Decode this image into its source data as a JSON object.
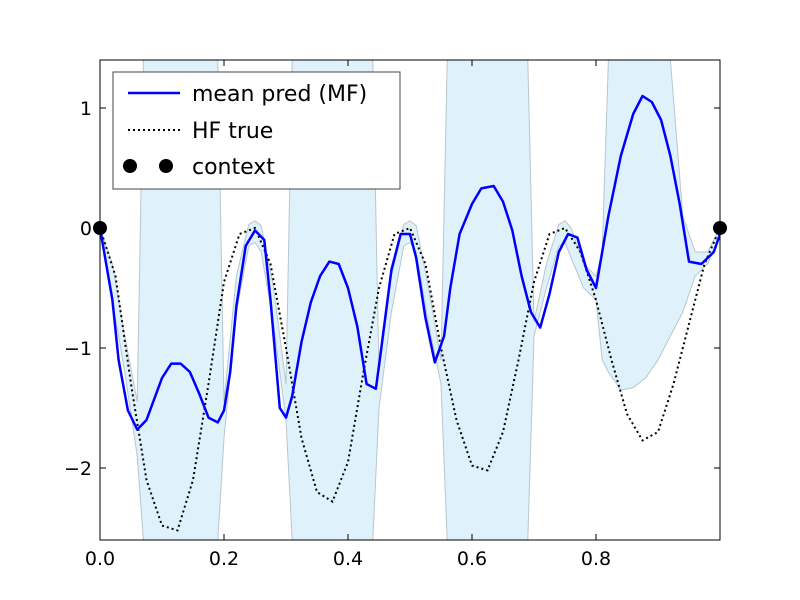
{
  "chart_data": {
    "type": "line",
    "title": "",
    "xlabel": "",
    "ylabel": "",
    "xlim": [
      0.0,
      1.0
    ],
    "ylim": [
      -2.6,
      1.4
    ],
    "xticks": [
      0.0,
      0.2,
      0.4,
      0.6,
      0.8
    ],
    "xtick_labels": [
      "0.0",
      "0.2",
      "0.4",
      "0.6",
      "0.8"
    ],
    "yticks": [
      -2,
      -1,
      0,
      1
    ],
    "ytick_labels": [
      "−2",
      "−1",
      "0",
      "1"
    ],
    "grid": false,
    "legend": {
      "placement": "top-left"
    },
    "colors": {
      "mean": "#0000ff",
      "band_fill": "#dff2fb",
      "band_edge": "#b9c6cc",
      "hf_true": "#000000",
      "context": "#000000"
    },
    "series": [
      {
        "name": "mean pred (MF)",
        "style": "solid",
        "x": [
          0.0,
          0.02,
          0.03,
          0.045,
          0.06,
          0.075,
          0.1,
          0.115,
          0.13,
          0.145,
          0.16,
          0.175,
          0.19,
          0.2,
          0.21,
          0.22,
          0.235,
          0.25,
          0.265,
          0.275,
          0.29,
          0.3,
          0.31,
          0.325,
          0.34,
          0.355,
          0.37,
          0.385,
          0.4,
          0.415,
          0.43,
          0.445,
          0.455,
          0.47,
          0.485,
          0.5,
          0.51,
          0.525,
          0.54,
          0.555,
          0.565,
          0.58,
          0.6,
          0.615,
          0.635,
          0.65,
          0.665,
          0.68,
          0.695,
          0.71,
          0.725,
          0.74,
          0.755,
          0.77,
          0.785,
          0.8,
          0.82,
          0.84,
          0.86,
          0.875,
          0.89,
          0.905,
          0.92,
          0.935,
          0.95,
          0.97,
          0.99,
          1.0
        ],
        "y": [
          0.0,
          -0.6,
          -1.1,
          -1.52,
          -1.68,
          -1.6,
          -1.25,
          -1.13,
          -1.13,
          -1.2,
          -1.38,
          -1.58,
          -1.62,
          -1.52,
          -1.2,
          -0.65,
          -0.15,
          -0.02,
          -0.1,
          -0.6,
          -1.5,
          -1.58,
          -1.4,
          -0.95,
          -0.62,
          -0.4,
          -0.28,
          -0.3,
          -0.5,
          -0.82,
          -1.3,
          -1.34,
          -0.95,
          -0.35,
          -0.05,
          -0.05,
          -0.25,
          -0.75,
          -1.12,
          -0.9,
          -0.5,
          -0.05,
          0.2,
          0.33,
          0.35,
          0.22,
          -0.02,
          -0.4,
          -0.7,
          -0.83,
          -0.55,
          -0.2,
          -0.05,
          -0.08,
          -0.35,
          -0.5,
          0.1,
          0.6,
          0.95,
          1.1,
          1.05,
          0.9,
          0.6,
          0.2,
          -0.28,
          -0.3,
          -0.2,
          -0.05
        ]
      },
      {
        "name": "HF true",
        "style": "dotted",
        "x": [
          0.0,
          0.025,
          0.05,
          0.075,
          0.1,
          0.125,
          0.15,
          0.175,
          0.2,
          0.225,
          0.25,
          0.275,
          0.3,
          0.325,
          0.35,
          0.375,
          0.4,
          0.425,
          0.45,
          0.475,
          0.5,
          0.525,
          0.55,
          0.575,
          0.6,
          0.625,
          0.65,
          0.675,
          0.7,
          0.725,
          0.75,
          0.775,
          0.8,
          0.825,
          0.85,
          0.875,
          0.9,
          0.925,
          0.95,
          0.975,
          1.0
        ],
        "y": [
          0.0,
          -0.4,
          -1.3,
          -2.1,
          -2.48,
          -2.52,
          -2.1,
          -1.3,
          -0.45,
          -0.05,
          0.0,
          -0.3,
          -1.0,
          -1.75,
          -2.2,
          -2.28,
          -1.95,
          -1.2,
          -0.5,
          -0.05,
          0.0,
          -0.3,
          -1.0,
          -1.6,
          -1.98,
          -2.02,
          -1.7,
          -1.1,
          -0.45,
          -0.05,
          0.0,
          -0.2,
          -0.6,
          -1.1,
          -1.55,
          -1.77,
          -1.7,
          -1.3,
          -0.8,
          -0.3,
          0.0
        ]
      },
      {
        "name": "context",
        "style": "markers",
        "x": [
          0.0,
          1.0
        ],
        "y": [
          0.0,
          0.0
        ]
      }
    ],
    "uncertainty_band": {
      "x": [
        0.0,
        0.02,
        0.04,
        0.06,
        0.07,
        0.09,
        0.19,
        0.2,
        0.22,
        0.24,
        0.25,
        0.26,
        0.28,
        0.3,
        0.31,
        0.34,
        0.44,
        0.45,
        0.47,
        0.49,
        0.5,
        0.51,
        0.53,
        0.55,
        0.56,
        0.59,
        0.69,
        0.7,
        0.72,
        0.74,
        0.75,
        0.76,
        0.78,
        0.8,
        0.81,
        0.82,
        0.84,
        0.86,
        0.88,
        0.9,
        0.92,
        0.94,
        0.96,
        0.98,
        1.0
      ],
      "upper": [
        0.0,
        -0.3,
        -0.9,
        -1.45,
        1.4,
        1.4,
        1.4,
        -1.45,
        -0.4,
        0.03,
        0.06,
        0.02,
        -0.5,
        -1.3,
        1.4,
        1.4,
        1.4,
        -1.2,
        -0.4,
        0.03,
        0.06,
        0.02,
        -0.5,
        -1.1,
        1.4,
        1.4,
        1.4,
        -0.78,
        -0.3,
        0.03,
        0.06,
        0.0,
        -0.3,
        -0.4,
        -0.2,
        1.4,
        1.4,
        1.4,
        1.4,
        1.4,
        1.4,
        0.1,
        -0.2,
        -0.2,
        0.0
      ],
      "lower": [
        0.0,
        -0.6,
        -1.2,
        -1.9,
        -2.6,
        -2.6,
        -2.6,
        -1.75,
        -0.7,
        -0.15,
        -0.12,
        -0.2,
        -0.8,
        -1.6,
        -2.6,
        -2.6,
        -2.6,
        -1.5,
        -0.7,
        -0.15,
        -0.12,
        -0.2,
        -0.8,
        -1.3,
        -2.6,
        -2.6,
        -2.6,
        -0.9,
        -0.5,
        -0.15,
        -0.12,
        -0.25,
        -0.5,
        -0.6,
        -1.1,
        -1.2,
        -1.35,
        -1.33,
        -1.25,
        -1.1,
        -0.9,
        -0.7,
        -0.4,
        -0.3,
        -0.05
      ]
    }
  }
}
